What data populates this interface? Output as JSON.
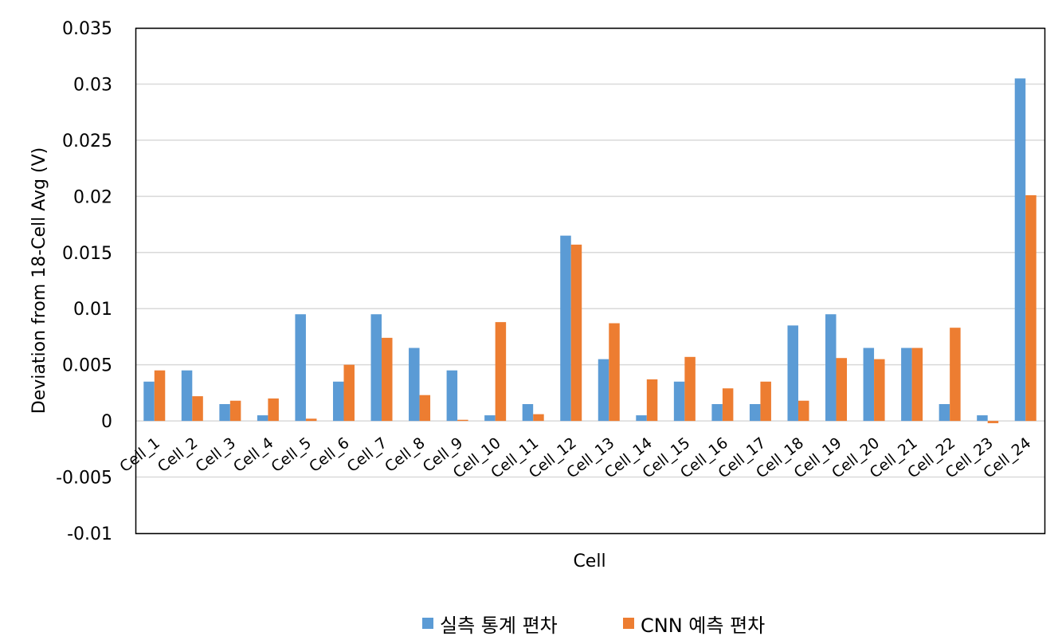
{
  "chart_data": {
    "type": "bar",
    "xlabel": "Cell",
    "ylabel": "Deviation from 18-Cell Avg (V)",
    "ylim": [
      -0.01,
      0.035
    ],
    "y_ticks": [
      "0.035",
      "0.03",
      "0.025",
      "0.02",
      "0.015",
      "0.01",
      "0.005",
      "0",
      "-0.005",
      "-0.01"
    ],
    "grid": true,
    "legend_position": "bottom",
    "categories": [
      "Cell_1",
      "Cell_2",
      "Cell_3",
      "Cell_4",
      "Cell_5",
      "Cell_6",
      "Cell_7",
      "Cell_8",
      "Cell_9",
      "Cell_10",
      "Cell_11",
      "Cell_12",
      "Cell_13",
      "Cell_14",
      "Cell_15",
      "Cell_16",
      "Cell_17",
      "Cell_18",
      "Cell_19",
      "Cell_20",
      "Cell_21",
      "Cell_22",
      "Cell_23",
      "Cell_24"
    ],
    "series": [
      {
        "name": "실측 통계 편차",
        "color": "#5b9bd5",
        "values": [
          0.0035,
          0.0045,
          0.0015,
          0.0005,
          0.0095,
          0.0035,
          0.0095,
          0.0065,
          0.0045,
          0.0005,
          0.0015,
          0.0165,
          0.0055,
          0.0005,
          0.0035,
          0.0015,
          0.0015,
          0.0085,
          0.0095,
          0.0065,
          0.0065,
          0.0015,
          0.0005,
          0.0305
        ]
      },
      {
        "name": "CNN 예측 편차",
        "color": "#ed7d31",
        "values": [
          0.0045,
          0.0022,
          0.0018,
          0.002,
          0.0002,
          0.005,
          0.0074,
          0.0023,
          0.0001,
          0.0088,
          0.0006,
          0.0157,
          0.0087,
          0.0037,
          0.0057,
          0.0029,
          0.0035,
          0.0018,
          0.0056,
          0.0055,
          0.0065,
          0.0083,
          -0.0002,
          0.0201
        ]
      }
    ]
  }
}
